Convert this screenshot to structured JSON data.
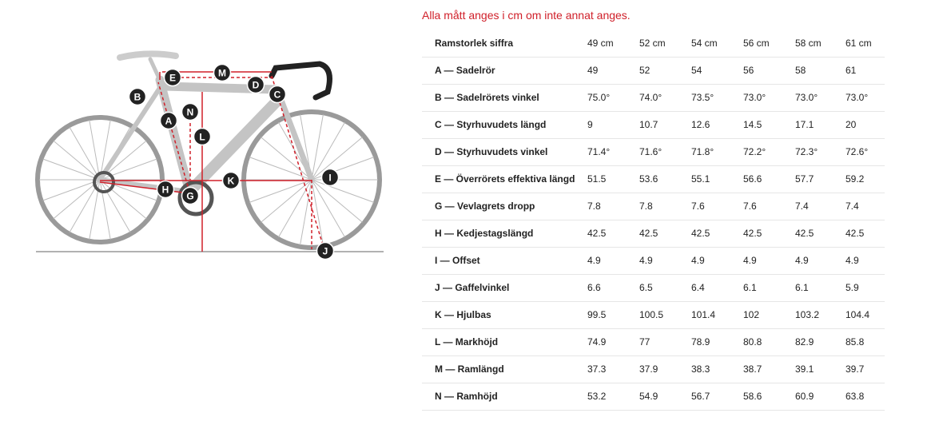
{
  "note": "Alla mått anges i cm om inte annat anges.",
  "table": {
    "header": [
      "Ramstorlek siffra",
      "49 cm",
      "52 cm",
      "54 cm",
      "56 cm",
      "58 cm",
      "61 cm"
    ],
    "rows": [
      [
        "A — Sadelrör",
        "49",
        "52",
        "54",
        "56",
        "58",
        "61"
      ],
      [
        "B — Sadelrörets vinkel",
        "75.0°",
        "74.0°",
        "73.5°",
        "73.0°",
        "73.0°",
        "73.0°"
      ],
      [
        "C — Styrhuvudets längd",
        "9",
        "10.7",
        "12.6",
        "14.5",
        "17.1",
        "20"
      ],
      [
        "D — Styrhuvudets vinkel",
        "71.4°",
        "71.6°",
        "71.8°",
        "72.2°",
        "72.3°",
        "72.6°"
      ],
      [
        "E — Överrörets effektiva längd",
        "51.5",
        "53.6",
        "55.1",
        "56.6",
        "57.7",
        "59.2"
      ],
      [
        "G — Vevlagrets dropp",
        "7.8",
        "7.8",
        "7.6",
        "7.6",
        "7.4",
        "7.4"
      ],
      [
        "H — Kedjestagslängd",
        "42.5",
        "42.5",
        "42.5",
        "42.5",
        "42.5",
        "42.5"
      ],
      [
        "I — Offset",
        "4.9",
        "4.9",
        "4.9",
        "4.9",
        "4.9",
        "4.9"
      ],
      [
        "J — Gaffelvinkel",
        "6.6",
        "6.5",
        "6.4",
        "6.1",
        "6.1",
        "5.9"
      ],
      [
        "K — Hjulbas",
        "99.5",
        "100.5",
        "101.4",
        "102",
        "103.2",
        "104.4"
      ],
      [
        "L — Markhöjd",
        "74.9",
        "77",
        "78.9",
        "80.8",
        "82.9",
        "85.8"
      ],
      [
        "M — Ramlängd",
        "37.3",
        "37.9",
        "38.3",
        "38.7",
        "39.1",
        "39.7"
      ],
      [
        "N — Ramhöjd",
        "53.2",
        "54.9",
        "56.7",
        "58.6",
        "60.9",
        "63.8"
      ]
    ]
  },
  "diagram": {
    "labels": [
      "M",
      "E",
      "D",
      "C",
      "B",
      "N",
      "A",
      "L",
      "K",
      "I",
      "H",
      "G",
      "J"
    ]
  }
}
